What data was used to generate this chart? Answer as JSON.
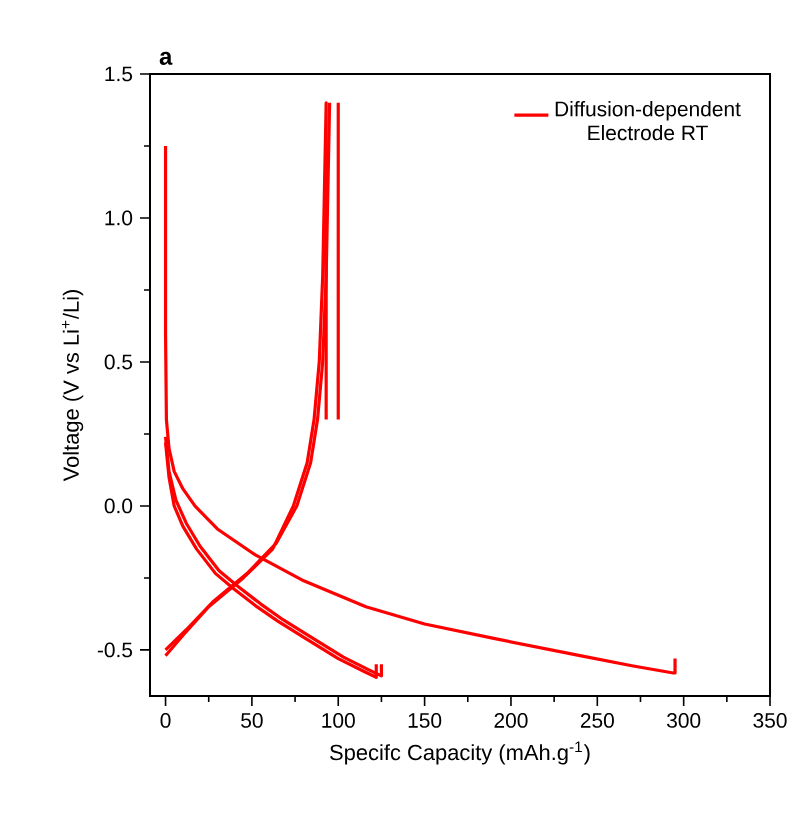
{
  "chart_data": {
    "type": "line",
    "title": "a",
    "xlabel": "Specifc Capacity (mAh.g$^{-1}$)",
    "ylabel": "Voltage (V vs Li$^{+}$/Li)",
    "xlim": [
      -9,
      350
    ],
    "ylim": [
      -0.66,
      1.5
    ],
    "xticks": [
      0,
      50,
      100,
      150,
      200,
      250,
      300,
      350
    ],
    "yticks": [
      -0.5,
      {
        "value": 0,
        "label": "0.0"
      },
      0.5,
      {
        "value": 1,
        "label": "1.0"
      },
      1.5
    ],
    "legend": "top right",
    "grid": false,
    "marker": "none",
    "line_style": "solid",
    "series": [
      {
        "name": "Diffusion-dependent Electrode RT",
        "color": "#ff0000",
        "x": [
          0,
          0,
          0.5,
          2,
          5,
          10,
          17,
          30,
          52,
          80,
          116,
          150,
          190,
          240,
          270,
          294,
          295,
          295
        ],
        "values": [
          1.25,
          0.6,
          0.3,
          0.2,
          0.12,
          0.06,
          0,
          -0.08,
          -0.17,
          -0.26,
          -0.35,
          -0.41,
          -0.46,
          -0.52,
          -0.555,
          -0.58,
          -0.58,
          -0.53
        ]
      },
      {
        "color": "#ff0000",
        "x": [
          0,
          2,
          5,
          10,
          18,
          29,
          40,
          52,
          65,
          81,
          100,
          115,
          122,
          122
        ],
        "values": [
          0.22,
          0.1,
          0,
          -0.07,
          -0.15,
          -0.235,
          -0.29,
          -0.346,
          -0.4,
          -0.46,
          -0.53,
          -0.575,
          -0.595,
          -0.55
        ]
      },
      {
        "color": "#ff0000",
        "x": [
          0,
          2,
          6,
          12,
          20,
          31,
          42,
          55,
          68,
          84,
          103,
          118,
          125,
          125
        ],
        "values": [
          0.24,
          0.12,
          0.02,
          -0.06,
          -0.14,
          -0.225,
          -0.28,
          -0.34,
          -0.395,
          -0.455,
          -0.525,
          -0.57,
          -0.59,
          -0.55
        ]
      },
      {
        "color": "#ff0000",
        "x": [
          0,
          10,
          25,
          45,
          62,
          74,
          82,
          86,
          89,
          91,
          92,
          93,
          93
        ],
        "values": [
          -0.52,
          -0.45,
          -0.35,
          -0.25,
          -0.15,
          0,
          0.15,
          0.3,
          0.5,
          0.8,
          1.1,
          1.4,
          0.3
        ]
      },
      {
        "color": "#ff0000",
        "x": [
          0,
          12,
          28,
          48,
          64,
          76,
          84,
          88,
          91,
          93,
          94,
          95
        ],
        "values": [
          -0.5,
          -0.43,
          -0.33,
          -0.23,
          -0.13,
          0,
          0.15,
          0.3,
          0.5,
          0.8,
          1.1,
          1.4
        ]
      },
      {
        "color": "#ff0000",
        "x": [
          100,
          100
        ],
        "values": [
          0.3,
          1.4
        ]
      }
    ]
  }
}
